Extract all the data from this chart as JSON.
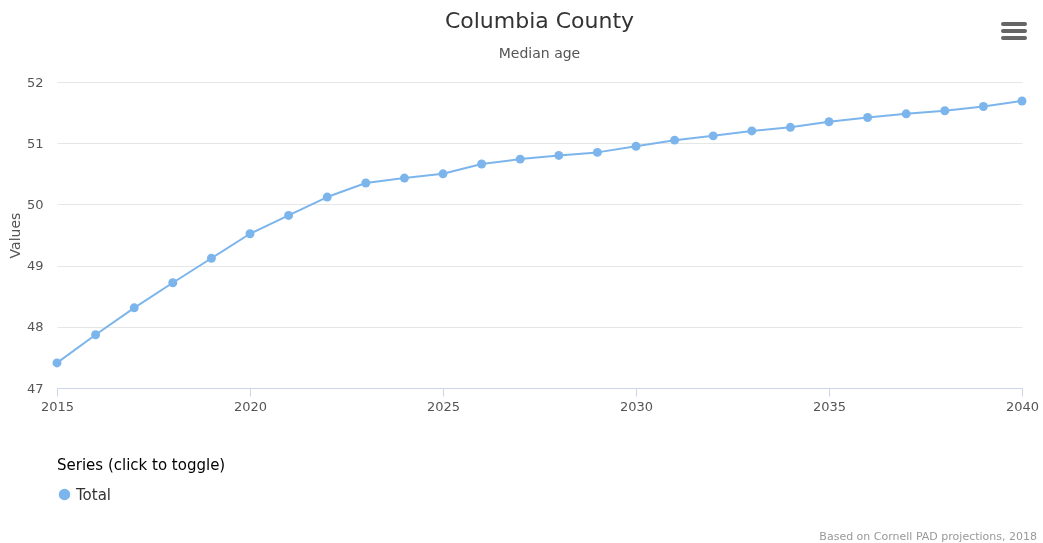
{
  "chart_data": {
    "type": "line",
    "title": "Columbia County",
    "subtitle": "Median age",
    "ylabel": "Values",
    "legend_title": "Series (click to toggle)",
    "x": [
      2015,
      2016,
      2017,
      2018,
      2019,
      2020,
      2021,
      2022,
      2023,
      2024,
      2025,
      2026,
      2027,
      2028,
      2029,
      2030,
      2031,
      2032,
      2033,
      2034,
      2035,
      2036,
      2037,
      2038,
      2039,
      2040
    ],
    "series": [
      {
        "name": "Total",
        "color": "#7cb5ec",
        "values": [
          47.41,
          47.87,
          48.31,
          48.72,
          49.12,
          49.52,
          49.82,
          50.12,
          50.35,
          50.43,
          50.5,
          50.66,
          50.74,
          50.8,
          50.85,
          50.95,
          51.05,
          51.12,
          51.2,
          51.26,
          51.35,
          51.42,
          51.48,
          51.53,
          51.6,
          51.69
        ]
      }
    ],
    "xlim": [
      2015,
      2040
    ],
    "xticks": [
      2015,
      2020,
      2025,
      2030,
      2035,
      2040
    ],
    "ylim": [
      47,
      52
    ],
    "yticks": [
      47,
      48,
      49,
      50,
      51,
      52
    ],
    "grid": "y",
    "legend": "bottom",
    "marker": "circle",
    "line_style": "solid",
    "annotations": [
      "Based on Cornell PAD projections, 2018"
    ]
  }
}
